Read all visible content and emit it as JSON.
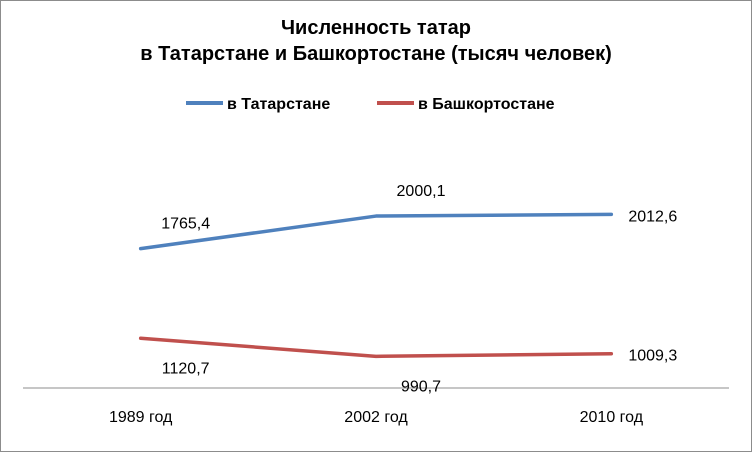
{
  "chart_data": {
    "type": "line",
    "title_lines": [
      "Численность татар",
      "в Татарстане и Башкортостане (тысяч человек)"
    ],
    "categories": [
      "1989 год",
      "2002 год",
      "2010 год"
    ],
    "series": [
      {
        "name": "в Татарстане",
        "color": "#4f81bd",
        "values": [
          1765.4,
          2000.1,
          2012.6
        ],
        "labels": [
          "1765,4",
          "2000,1",
          "2012,6"
        ],
        "label_pos": [
          "above",
          "above",
          "right"
        ]
      },
      {
        "name": "в Башкортостане",
        "color": "#c0504d",
        "values": [
          1120.7,
          990.7,
          1009.3
        ],
        "labels": [
          "1120,7",
          "990,7",
          "1009,3"
        ],
        "label_pos": [
          "below",
          "below",
          "right"
        ]
      }
    ],
    "legend_position": "top",
    "grid": false
  }
}
